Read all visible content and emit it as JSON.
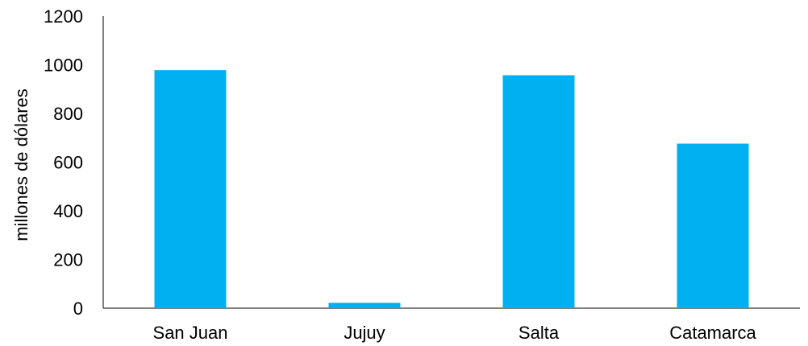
{
  "chart_data": {
    "type": "bar",
    "categories": [
      "San Juan",
      "Jujuy",
      "Salta",
      "Catamarca"
    ],
    "values": [
      978,
      22,
      957,
      676
    ],
    "ylabel": "millones de dólares",
    "xlabel": "",
    "ylim": [
      0,
      1200
    ],
    "yticks": [
      "0",
      "200",
      "400",
      "600",
      "800",
      "1000",
      "1200"
    ],
    "grid": false,
    "bar_color": "#00b0f0"
  }
}
